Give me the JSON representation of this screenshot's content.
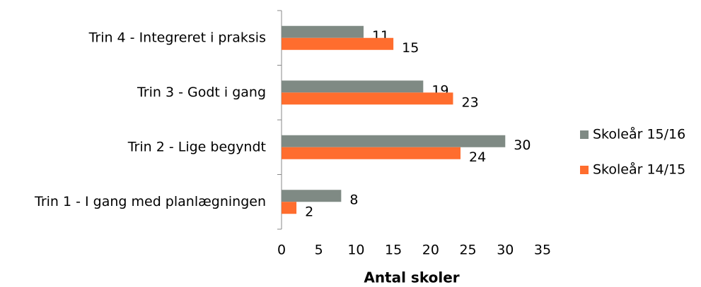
{
  "chart_data": {
    "type": "bar",
    "orientation": "horizontal",
    "categories": [
      "Trin 4 - Integreret i praksis",
      "Trin 3 - Godt i gang",
      "Trin 2 - Lige begyndt",
      "Trin 1 - I gang med planlægningen"
    ],
    "series": [
      {
        "name": "Skoleår 15/16",
        "color": "#7f8a84",
        "values": [
          11,
          19,
          30,
          8
        ]
      },
      {
        "name": "Skoleår 14/15",
        "color": "#ff6d2e",
        "values": [
          15,
          23,
          24,
          2
        ]
      }
    ],
    "xlabel": "Antal skoler",
    "xlim": [
      0,
      35
    ],
    "xticks": [
      0,
      5,
      10,
      15,
      20,
      25,
      30,
      35
    ],
    "grid": false,
    "legend": "right"
  }
}
